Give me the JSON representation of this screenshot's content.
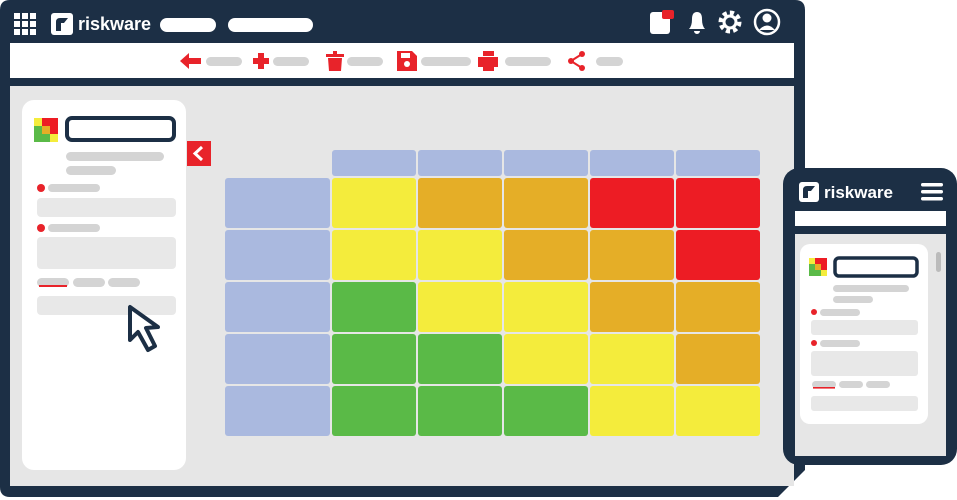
{
  "app": {
    "brand": "riskware"
  },
  "mobile": {
    "brand": "riskware"
  }
}
